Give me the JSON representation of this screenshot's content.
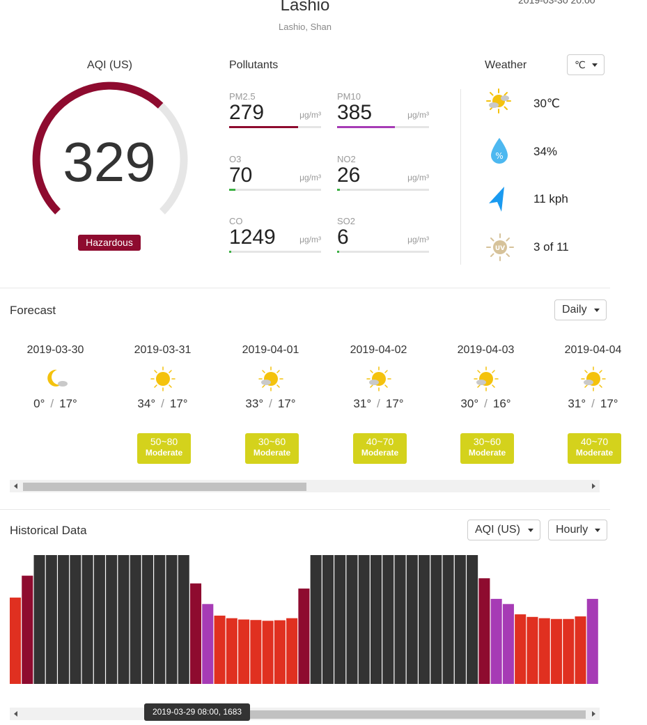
{
  "header": {
    "city": "Lashio",
    "region": "Lashio, Shan",
    "timestamp": "2019-03-30 20:00"
  },
  "aqi": {
    "label": "AQI (US)",
    "value": "329",
    "level": "Hazardous",
    "gauge_fraction": 0.66,
    "color": "#8e0b2f"
  },
  "pollutants": {
    "label": "Pollutants",
    "items": [
      {
        "name": "PM2.5",
        "value": "279",
        "unit": "μg/m³",
        "fill": 0.75,
        "color": "#8e0b2f"
      },
      {
        "name": "PM10",
        "value": "385",
        "unit": "μg/m³",
        "fill": 0.63,
        "color": "#a63bb5"
      },
      {
        "name": "O3",
        "value": "70",
        "unit": "μg/m³",
        "fill": 0.07,
        "color": "#3cb043"
      },
      {
        "name": "NO2",
        "value": "26",
        "unit": "μg/m³",
        "fill": 0.03,
        "color": "#3cb043"
      },
      {
        "name": "CO",
        "value": "1249",
        "unit": "μg/m³",
        "fill": 0.02,
        "color": "#3cb043"
      },
      {
        "name": "SO2",
        "value": "6",
        "unit": "μg/m³",
        "fill": 0.01,
        "color": "#3cb043"
      }
    ]
  },
  "weather": {
    "label": "Weather",
    "unit_selector": "℃",
    "items": [
      {
        "icon": "partly-sunny-icon",
        "text": "30℃"
      },
      {
        "icon": "humidity-drop-icon",
        "text": "34%"
      },
      {
        "icon": "wind-direction-icon",
        "text": "11 kph"
      },
      {
        "icon": "uv-index-icon",
        "text": "3 of 11"
      }
    ]
  },
  "forecast": {
    "title": "Forecast",
    "mode": "Daily",
    "days": [
      {
        "date": "2019-03-30",
        "icon": "moon-cloud-icon",
        "low": "0°",
        "high": "17°",
        "aqi": "",
        "level": ""
      },
      {
        "date": "2019-03-31",
        "icon": "sun-icon",
        "low": "34°",
        "high": "17°",
        "aqi": "50~80",
        "level": "Moderate"
      },
      {
        "date": "2019-04-01",
        "icon": "partly-sunny-icon",
        "low": "33°",
        "high": "17°",
        "aqi": "30~60",
        "level": "Moderate"
      },
      {
        "date": "2019-04-02",
        "icon": "partly-sunny-icon",
        "low": "31°",
        "high": "17°",
        "aqi": "40~70",
        "level": "Moderate"
      },
      {
        "date": "2019-04-03",
        "icon": "partly-sunny-icon",
        "low": "30°",
        "high": "16°",
        "aqi": "30~60",
        "level": "Moderate"
      },
      {
        "date": "2019-04-04",
        "icon": "partly-sunny-icon",
        "low": "31°",
        "high": "17°",
        "aqi": "40~70",
        "level": "Moderate"
      }
    ],
    "scroll_fraction": 0.0
  },
  "historical": {
    "title": "Historical Data",
    "metric": "AQI (US)",
    "mode": "Hourly",
    "tooltip": "2019-03-29 08:00, 1683",
    "colors": {
      "hazardous": "#333333",
      "very_unhealthy": "#a63bb5",
      "unhealthy": "#e03020",
      "maroon": "#8e0b2f"
    }
  },
  "chart_data": {
    "type": "bar",
    "values": [
      335,
      420,
      500,
      500,
      500,
      500,
      500,
      500,
      500,
      500,
      500,
      500,
      500,
      500,
      500,
      390,
      310,
      265,
      255,
      250,
      248,
      245,
      247,
      255,
      370,
      500,
      500,
      500,
      500,
      500,
      500,
      500,
      500,
      500,
      500,
      500,
      500,
      500,
      500,
      410,
      330,
      310,
      270,
      260,
      255,
      252,
      252,
      262,
      330
    ],
    "colors": [
      "#e03020",
      "#8e0b2f",
      "#333333",
      "#333333",
      "#333333",
      "#333333",
      "#333333",
      "#333333",
      "#333333",
      "#333333",
      "#333333",
      "#333333",
      "#333333",
      "#333333",
      "#333333",
      "#8e0b2f",
      "#a63bb5",
      "#e03020",
      "#e03020",
      "#e03020",
      "#e03020",
      "#e03020",
      "#e03020",
      "#e03020",
      "#8e0b2f",
      "#333333",
      "#333333",
      "#333333",
      "#333333",
      "#333333",
      "#333333",
      "#333333",
      "#333333",
      "#333333",
      "#333333",
      "#333333",
      "#333333",
      "#333333",
      "#333333",
      "#8e0b2f",
      "#a63bb5",
      "#a63bb5",
      "#e03020",
      "#e03020",
      "#e03020",
      "#e03020",
      "#e03020",
      "#e03020",
      "#a63bb5"
    ],
    "ylim": [
      0,
      500
    ]
  }
}
